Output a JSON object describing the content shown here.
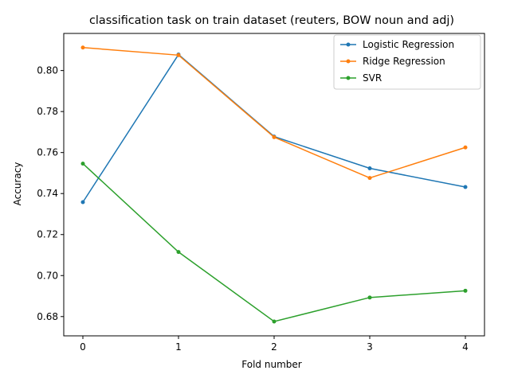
{
  "chart_data": {
    "type": "line",
    "title": "classification task on train dataset (reuters, BOW noun and adj)",
    "xlabel": "Fold number",
    "ylabel": "Accuracy",
    "x": [
      0,
      1,
      2,
      3,
      4
    ],
    "xlim": [
      -0.2,
      4.2
    ],
    "ylim": [
      0.6706,
      0.8181
    ],
    "xticks": [
      "0",
      "1",
      "2",
      "3",
      "4"
    ],
    "yticks": [
      "0.68",
      "0.70",
      "0.72",
      "0.74",
      "0.76",
      "0.78",
      "0.80"
    ],
    "legend_position": "top-right",
    "grid": false,
    "series": [
      {
        "name": "Logistic Regression",
        "color": "#1f77b4",
        "values": [
          0.7358,
          0.8078,
          0.7678,
          0.7523,
          0.7432
        ]
      },
      {
        "name": "Ridge Regression",
        "color": "#ff7f0e",
        "values": [
          0.8112,
          0.8075,
          0.7675,
          0.7476,
          0.7625
        ]
      },
      {
        "name": "SVR",
        "color": "#2ca02c",
        "values": [
          0.7546,
          0.7115,
          0.6776,
          0.6893,
          0.6926
        ]
      }
    ]
  }
}
